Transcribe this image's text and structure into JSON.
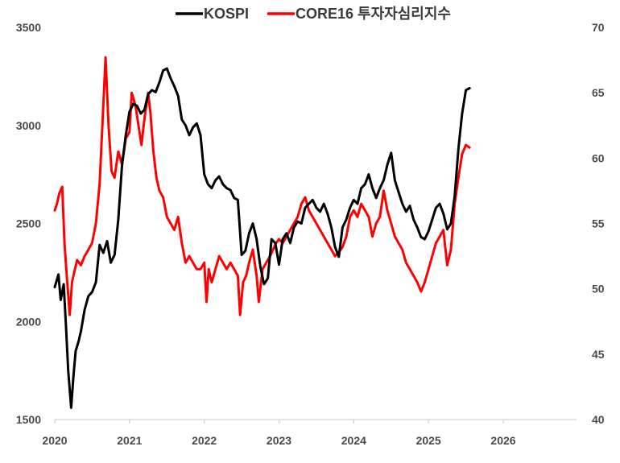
{
  "chart_data": {
    "type": "line",
    "title": "",
    "xlabel": "",
    "ylabel": "",
    "x_ticks": [
      "2020",
      "2021",
      "2022",
      "2023",
      "2024",
      "2025",
      "2026"
    ],
    "xlim": [
      2020.0,
      2026.0
    ],
    "y_left": {
      "ticks": [
        "1500",
        "2000",
        "2500",
        "3000",
        "3500"
      ],
      "lim": [
        1500,
        3500
      ]
    },
    "y_right": {
      "ticks": [
        "40",
        "45",
        "50",
        "55",
        "60",
        "65",
        "70"
      ],
      "lim": [
        40,
        70
      ]
    },
    "grid": false,
    "legend_position": "top-center",
    "series": [
      {
        "name": "KOSPI",
        "axis": "left",
        "color": "#000000",
        "points": [
          [
            2020.0,
            2175
          ],
          [
            2020.05,
            2240
          ],
          [
            2020.08,
            2110
          ],
          [
            2020.12,
            2190
          ],
          [
            2020.15,
            1980
          ],
          [
            2020.18,
            1750
          ],
          [
            2020.22,
            1560
          ],
          [
            2020.25,
            1720
          ],
          [
            2020.28,
            1850
          ],
          [
            2020.32,
            1900
          ],
          [
            2020.35,
            1950
          ],
          [
            2020.4,
            2060
          ],
          [
            2020.45,
            2130
          ],
          [
            2020.5,
            2150
          ],
          [
            2020.55,
            2200
          ],
          [
            2020.6,
            2390
          ],
          [
            2020.65,
            2350
          ],
          [
            2020.7,
            2410
          ],
          [
            2020.75,
            2300
          ],
          [
            2020.8,
            2340
          ],
          [
            2020.85,
            2520
          ],
          [
            2020.9,
            2800
          ],
          [
            2020.95,
            2950
          ],
          [
            2021.0,
            3070
          ],
          [
            2021.05,
            3110
          ],
          [
            2021.1,
            3100
          ],
          [
            2021.15,
            3060
          ],
          [
            2021.2,
            3080
          ],
          [
            2021.25,
            3160
          ],
          [
            2021.3,
            3180
          ],
          [
            2021.35,
            3170
          ],
          [
            2021.4,
            3220
          ],
          [
            2021.45,
            3280
          ],
          [
            2021.5,
            3290
          ],
          [
            2021.55,
            3240
          ],
          [
            2021.6,
            3200
          ],
          [
            2021.65,
            3150
          ],
          [
            2021.7,
            3030
          ],
          [
            2021.75,
            3000
          ],
          [
            2021.8,
            2950
          ],
          [
            2021.85,
            2990
          ],
          [
            2021.9,
            3010
          ],
          [
            2021.95,
            2950
          ],
          [
            2022.0,
            2750
          ],
          [
            2022.05,
            2700
          ],
          [
            2022.1,
            2680
          ],
          [
            2022.15,
            2720
          ],
          [
            2022.2,
            2740
          ],
          [
            2022.25,
            2700
          ],
          [
            2022.3,
            2680
          ],
          [
            2022.35,
            2670
          ],
          [
            2022.4,
            2630
          ],
          [
            2022.45,
            2620
          ],
          [
            2022.5,
            2340
          ],
          [
            2022.55,
            2360
          ],
          [
            2022.6,
            2450
          ],
          [
            2022.65,
            2500
          ],
          [
            2022.7,
            2420
          ],
          [
            2022.75,
            2280
          ],
          [
            2022.8,
            2190
          ],
          [
            2022.85,
            2220
          ],
          [
            2022.9,
            2420
          ],
          [
            2022.95,
            2400
          ],
          [
            2023.0,
            2290
          ],
          [
            2023.05,
            2420
          ],
          [
            2023.1,
            2450
          ],
          [
            2023.15,
            2400
          ],
          [
            2023.2,
            2480
          ],
          [
            2023.25,
            2510
          ],
          [
            2023.3,
            2500
          ],
          [
            2023.35,
            2580
          ],
          [
            2023.4,
            2600
          ],
          [
            2023.45,
            2620
          ],
          [
            2023.5,
            2580
          ],
          [
            2023.55,
            2560
          ],
          [
            2023.6,
            2600
          ],
          [
            2023.65,
            2550
          ],
          [
            2023.7,
            2480
          ],
          [
            2023.75,
            2380
          ],
          [
            2023.8,
            2330
          ],
          [
            2023.85,
            2480
          ],
          [
            2023.9,
            2520
          ],
          [
            2023.95,
            2580
          ],
          [
            2024.0,
            2620
          ],
          [
            2024.05,
            2600
          ],
          [
            2024.1,
            2680
          ],
          [
            2024.15,
            2700
          ],
          [
            2024.2,
            2750
          ],
          [
            2024.25,
            2680
          ],
          [
            2024.3,
            2630
          ],
          [
            2024.35,
            2680
          ],
          [
            2024.4,
            2720
          ],
          [
            2024.45,
            2800
          ],
          [
            2024.5,
            2860
          ],
          [
            2024.55,
            2720
          ],
          [
            2024.6,
            2660
          ],
          [
            2024.65,
            2600
          ],
          [
            2024.7,
            2560
          ],
          [
            2024.75,
            2590
          ],
          [
            2024.8,
            2520
          ],
          [
            2024.85,
            2480
          ],
          [
            2024.9,
            2430
          ],
          [
            2024.95,
            2420
          ],
          [
            2025.0,
            2460
          ],
          [
            2025.05,
            2520
          ],
          [
            2025.1,
            2580
          ],
          [
            2025.15,
            2600
          ],
          [
            2025.2,
            2550
          ],
          [
            2025.25,
            2470
          ],
          [
            2025.3,
            2500
          ],
          [
            2025.35,
            2640
          ],
          [
            2025.4,
            2880
          ],
          [
            2025.45,
            3060
          ],
          [
            2025.5,
            3180
          ],
          [
            2025.55,
            3190
          ]
        ]
      },
      {
        "name": "CORE16 투자자심리지수",
        "axis": "right",
        "color": "#ff0000",
        "points": [
          [
            2020.0,
            56.0
          ],
          [
            2020.03,
            56.5
          ],
          [
            2020.06,
            57.3
          ],
          [
            2020.1,
            57.8
          ],
          [
            2020.13,
            53.5
          ],
          [
            2020.16,
            51.0
          ],
          [
            2020.2,
            48.0
          ],
          [
            2020.23,
            50.5
          ],
          [
            2020.27,
            51.5
          ],
          [
            2020.3,
            52.2
          ],
          [
            2020.35,
            51.8
          ],
          [
            2020.4,
            52.5
          ],
          [
            2020.45,
            53.0
          ],
          [
            2020.5,
            53.5
          ],
          [
            2020.55,
            55.0
          ],
          [
            2020.6,
            58.0
          ],
          [
            2020.65,
            64.0
          ],
          [
            2020.68,
            67.7
          ],
          [
            2020.72,
            62.5
          ],
          [
            2020.76,
            59.0
          ],
          [
            2020.8,
            58.5
          ],
          [
            2020.85,
            60.5
          ],
          [
            2020.9,
            59.5
          ],
          [
            2020.95,
            61.5
          ],
          [
            2021.0,
            62.0
          ],
          [
            2021.03,
            65.0
          ],
          [
            2021.08,
            64.0
          ],
          [
            2021.12,
            62.5
          ],
          [
            2021.16,
            61.0
          ],
          [
            2021.2,
            63.0
          ],
          [
            2021.25,
            65.0
          ],
          [
            2021.28,
            63.5
          ],
          [
            2021.32,
            60.5
          ],
          [
            2021.36,
            58.5
          ],
          [
            2021.4,
            57.5
          ],
          [
            2021.45,
            57.0
          ],
          [
            2021.5,
            55.5
          ],
          [
            2021.55,
            55.0
          ],
          [
            2021.6,
            54.5
          ],
          [
            2021.65,
            55.5
          ],
          [
            2021.7,
            53.5
          ],
          [
            2021.75,
            52.0
          ],
          [
            2021.8,
            52.5
          ],
          [
            2021.85,
            52.0
          ],
          [
            2021.9,
            51.5
          ],
          [
            2021.95,
            51.5
          ],
          [
            2022.0,
            52.0
          ],
          [
            2022.03,
            49.0
          ],
          [
            2022.06,
            51.5
          ],
          [
            2022.1,
            50.5
          ],
          [
            2022.15,
            51.5
          ],
          [
            2022.2,
            52.5
          ],
          [
            2022.25,
            52.0
          ],
          [
            2022.3,
            51.5
          ],
          [
            2022.35,
            52.0
          ],
          [
            2022.4,
            51.5
          ],
          [
            2022.45,
            51.0
          ],
          [
            2022.48,
            48.0
          ],
          [
            2022.52,
            50.5
          ],
          [
            2022.56,
            51.0
          ],
          [
            2022.6,
            52.0
          ],
          [
            2022.65,
            53.0
          ],
          [
            2022.7,
            51.0
          ],
          [
            2022.73,
            49.0
          ],
          [
            2022.78,
            51.5
          ],
          [
            2022.83,
            52.0
          ],
          [
            2022.88,
            52.5
          ],
          [
            2022.92,
            53.0
          ],
          [
            2022.96,
            53.5
          ],
          [
            2023.0,
            53.8
          ],
          [
            2023.05,
            53.5
          ],
          [
            2023.1,
            54.0
          ],
          [
            2023.15,
            54.5
          ],
          [
            2023.2,
            55.0
          ],
          [
            2023.25,
            55.5
          ],
          [
            2023.3,
            56.5
          ],
          [
            2023.35,
            57.0
          ],
          [
            2023.4,
            56.0
          ],
          [
            2023.45,
            55.5
          ],
          [
            2023.5,
            55.0
          ],
          [
            2023.55,
            54.5
          ],
          [
            2023.6,
            54.0
          ],
          [
            2023.65,
            53.5
          ],
          [
            2023.7,
            53.0
          ],
          [
            2023.75,
            52.5
          ],
          [
            2023.8,
            52.8
          ],
          [
            2023.85,
            53.2
          ],
          [
            2023.9,
            54.0
          ],
          [
            2023.95,
            55.5
          ],
          [
            2024.0,
            56.0
          ],
          [
            2024.05,
            55.5
          ],
          [
            2024.1,
            56.5
          ],
          [
            2024.15,
            56.0
          ],
          [
            2024.2,
            55.5
          ],
          [
            2024.25,
            54.0
          ],
          [
            2024.3,
            55.0
          ],
          [
            2024.35,
            55.5
          ],
          [
            2024.4,
            57.5
          ],
          [
            2024.45,
            56.0
          ],
          [
            2024.5,
            55.0
          ],
          [
            2024.55,
            54.0
          ],
          [
            2024.6,
            53.5
          ],
          [
            2024.65,
            53.0
          ],
          [
            2024.7,
            52.0
          ],
          [
            2024.75,
            51.5
          ],
          [
            2024.8,
            51.0
          ],
          [
            2024.85,
            50.5
          ],
          [
            2024.9,
            49.8
          ],
          [
            2024.95,
            50.5
          ],
          [
            2025.0,
            51.5
          ],
          [
            2025.05,
            52.5
          ],
          [
            2025.1,
            53.5
          ],
          [
            2025.15,
            54.0
          ],
          [
            2025.2,
            54.5
          ],
          [
            2025.25,
            51.8
          ],
          [
            2025.3,
            53.0
          ],
          [
            2025.35,
            56.5
          ],
          [
            2025.4,
            58.5
          ],
          [
            2025.45,
            60.3
          ],
          [
            2025.5,
            61.0
          ],
          [
            2025.55,
            60.8
          ]
        ]
      }
    ]
  }
}
